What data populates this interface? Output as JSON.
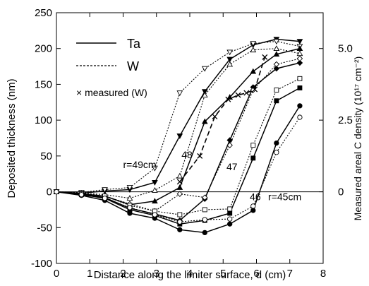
{
  "chart_data": {
    "type": "line",
    "title": "",
    "xlabel": "Distance along the limiter surface, d (cm)",
    "ylabel": "Deposited thickness (nm)",
    "y2label": "Measured areal C density (10¹⁷ cm⁻²)",
    "xlim": [
      0,
      8
    ],
    "ylim": [
      -100,
      250
    ],
    "x_ticks": [
      0,
      1,
      2,
      3,
      4,
      5,
      6,
      7,
      8
    ],
    "y_ticks": [
      -100,
      -50,
      0,
      50,
      100,
      150,
      200,
      250
    ],
    "y2_ticks": [
      {
        "value": 0,
        "label": "0"
      },
      {
        "value": 100,
        "label": "2.5"
      },
      {
        "value": 200,
        "label": "5.0"
      }
    ],
    "grid": false,
    "zero_line": true,
    "legend": {
      "placement": "top-left",
      "entries": [
        {
          "label": "Ta",
          "style": "solid"
        },
        {
          "label": "W",
          "style": "dotted"
        },
        {
          "label": "× measured (W)",
          "style": "marker"
        }
      ]
    },
    "annotations": [
      {
        "text": "r=49cm",
        "x": 2.0,
        "y": 33
      },
      {
        "text": "48",
        "x": 3.75,
        "y": 47
      },
      {
        "text": "47",
        "x": 5.1,
        "y": 30
      },
      {
        "text": "46",
        "x": 5.8,
        "y": -12
      },
      {
        "text": "r=45cm",
        "x": 6.35,
        "y": -12
      }
    ],
    "series": [
      {
        "metal": "Ta",
        "r": 49,
        "style": "solid",
        "marker": "filled-triangle-down",
        "x": [
          0,
          0.75,
          1.45,
          2.2,
          2.95,
          3.7,
          4.45,
          5.2,
          5.9,
          6.6,
          7.3
        ],
        "y": [
          0,
          -2,
          1,
          3,
          13,
          78,
          140,
          185,
          205,
          213,
          210
        ]
      },
      {
        "metal": "W",
        "r": 49,
        "style": "dotted",
        "marker": "open-triangle-down",
        "x": [
          0,
          0.75,
          1.45,
          2.2,
          2.95,
          3.7,
          4.45,
          5.2,
          5.9,
          6.6,
          7.3
        ],
        "y": [
          0,
          -1,
          3,
          6,
          33,
          138,
          172,
          195,
          207,
          210,
          203
        ]
      },
      {
        "metal": "Ta",
        "r": 48,
        "style": "solid",
        "marker": "filled-triangle-up",
        "x": [
          0,
          0.75,
          1.45,
          2.2,
          2.95,
          3.7,
          4.45,
          5.2,
          5.9,
          6.6,
          7.3
        ],
        "y": [
          0,
          -3,
          -6,
          -18,
          -13,
          6,
          98,
          132,
          168,
          192,
          200
        ]
      },
      {
        "metal": "W",
        "r": 48,
        "style": "dotted",
        "marker": "open-triangle-up",
        "x": [
          0,
          0.75,
          1.45,
          2.2,
          2.95,
          3.7,
          4.45,
          5.2,
          5.9,
          6.6,
          7.3
        ],
        "y": [
          0,
          -2,
          -4,
          -9,
          2,
          22,
          135,
          178,
          198,
          200,
          193
        ]
      },
      {
        "metal": "Ta",
        "r": 47,
        "style": "solid",
        "marker": "filled-diamond",
        "x": [
          0,
          0.75,
          1.45,
          2.2,
          2.95,
          3.7,
          4.45,
          5.2,
          5.9,
          6.6,
          7.3
        ],
        "y": [
          0,
          -3,
          -8,
          -23,
          -31,
          -40,
          -10,
          72,
          146,
          172,
          180
        ]
      },
      {
        "metal": "W",
        "r": 47,
        "style": "dotted",
        "marker": "open-diamond",
        "x": [
          0,
          0.75,
          1.45,
          2.2,
          2.95,
          3.7,
          4.45,
          5.2,
          5.9,
          6.6,
          7.3
        ],
        "y": [
          0,
          -2,
          -6,
          -17,
          -27,
          -3,
          -8,
          65,
          142,
          178,
          186
        ]
      },
      {
        "metal": "Ta",
        "r": 46,
        "style": "solid",
        "marker": "filled-square",
        "x": [
          0,
          0.75,
          1.45,
          2.2,
          2.95,
          3.7,
          4.45,
          5.2,
          5.9,
          6.6,
          7.3
        ],
        "y": [
          0,
          -4,
          -9,
          -25,
          -33,
          -45,
          -40,
          -30,
          47,
          127,
          145
        ]
      },
      {
        "metal": "W",
        "r": 46,
        "style": "dotted",
        "marker": "open-square",
        "x": [
          0,
          0.75,
          1.45,
          2.2,
          2.95,
          3.7,
          4.45,
          5.2,
          5.9,
          6.6,
          7.3
        ],
        "y": [
          0,
          -3,
          -6,
          -19,
          -27,
          -32,
          -25,
          -24,
          65,
          142,
          158
        ]
      },
      {
        "metal": "Ta",
        "r": 45,
        "style": "solid",
        "marker": "filled-circle",
        "x": [
          0,
          0.75,
          1.45,
          2.2,
          2.95,
          3.7,
          4.45,
          5.2,
          5.9,
          6.6,
          7.3
        ],
        "y": [
          0,
          -5,
          -12,
          -30,
          -37,
          -53,
          -57,
          -45,
          -26,
          68,
          120
        ]
      },
      {
        "metal": "W",
        "r": 45,
        "style": "dotted",
        "marker": "open-circle",
        "x": [
          0,
          0.75,
          1.45,
          2.2,
          2.95,
          3.7,
          4.45,
          5.2,
          5.9,
          6.6,
          7.3
        ],
        "y": [
          0,
          -4,
          -9,
          -22,
          -32,
          -42,
          -39,
          -38,
          -20,
          55,
          104
        ]
      },
      {
        "metal": "measured (W)",
        "style": "dashed",
        "marker": "cross",
        "x": [
          3.7,
          4.3,
          4.75,
          5.15,
          5.45,
          5.7,
          5.95,
          6.25
        ],
        "y": [
          14,
          50,
          105,
          129,
          135,
          138,
          143,
          188
        ]
      }
    ]
  }
}
